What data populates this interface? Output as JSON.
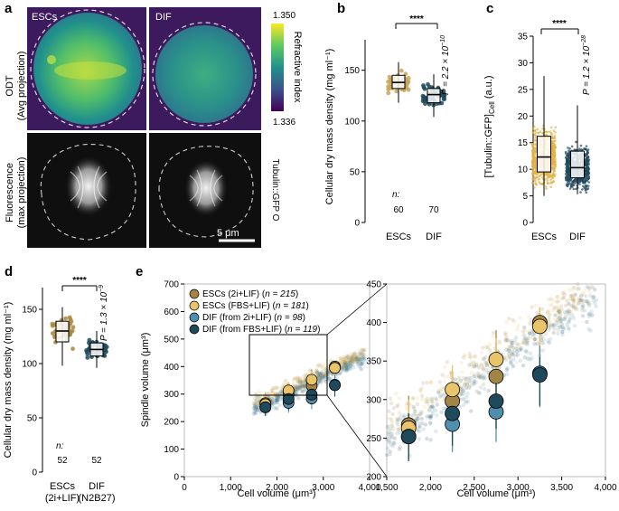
{
  "panel_labels": {
    "a": "a",
    "b": "b",
    "c": "c",
    "d": "d",
    "e": "e"
  },
  "panel_a": {
    "image_labels": [
      "ESCs",
      "DIF"
    ],
    "row_labels": [
      "ODT\n(Avg projection)",
      "Fluorescence\n(max projection)"
    ],
    "colorbar": {
      "max": "1.350",
      "min": "1.336",
      "label": "Refractive index",
      "colors": [
        "#440154",
        "#3b528b",
        "#21918c",
        "#5ec962",
        "#fde725"
      ]
    },
    "side_label": "Tubulin::GFP O",
    "scale_bar": "5 μm"
  },
  "chart_data": [
    {
      "panel": "b",
      "type": "box",
      "ylabel": "Cellular dry mass density (mg ml⁻¹)",
      "ylim": [
        0,
        180
      ],
      "yticks": [
        "0",
        "50",
        "100",
        "150"
      ],
      "categories": [
        "ESCs",
        "DIF"
      ],
      "n_label": "n:",
      "n": [
        "60",
        "70"
      ],
      "medians": [
        138,
        126
      ],
      "q1": [
        132,
        118
      ],
      "q3": [
        145,
        132
      ],
      "whiskers": [
        [
          118,
          158
        ],
        [
          104,
          146
        ]
      ],
      "colors": [
        "#c9a45a",
        "#1f4a5c"
      ],
      "significance": "****",
      "p_value": "P = 2.2 × 10",
      "p_exp": "−10"
    },
    {
      "panel": "c",
      "type": "box",
      "ylabel": "[Tubulin::GFP]",
      "ylabel_sub": "Cell",
      "ylabel_unit": " (a.u.)",
      "ylim": [
        0,
        35
      ],
      "yticks": [
        "0",
        "5",
        "10",
        "15",
        "20",
        "25",
        "30",
        "35"
      ],
      "categories": [
        "ESCs",
        "DIF"
      ],
      "medians": [
        12.3,
        10.3
      ],
      "q1": [
        9.5,
        8.4
      ],
      "q3": [
        16.2,
        13.4
      ],
      "whiskers": [
        [
          5.0,
          27.5
        ],
        [
          5.3,
          22.0
        ]
      ],
      "colors": [
        "#e0b24a",
        "#1f4a5c"
      ],
      "significance": "****",
      "p_value": "P = 1.2 × 10",
      "p_exp": "−28"
    },
    {
      "panel": "d",
      "type": "box",
      "ylabel": "Cellular dry mass density (mg ml⁻¹)",
      "ylim": [
        0,
        170
      ],
      "yticks": [
        "0",
        "50",
        "100",
        "150"
      ],
      "categories": [
        "ESCs\n(2i+LIF)",
        "DIF\n(N2B27)"
      ],
      "n_label": "n:",
      "n": [
        "52",
        "52"
      ],
      "medians": [
        130,
        113
      ],
      "q1": [
        120,
        107
      ],
      "q3": [
        139,
        119
      ],
      "whiskers": [
        [
          98,
          152
        ],
        [
          96,
          130
        ]
      ],
      "colors": [
        "#a8883f",
        "#1f4a5c"
      ],
      "significance": "****",
      "p_value": "P = 1.3 × 10",
      "p_exp": "−9"
    },
    {
      "panel": "e",
      "type": "scatter",
      "xlabel": "Cell volume (μm³)",
      "ylabel": "Spindle volume (μm³)",
      "xlim": [
        0,
        4000
      ],
      "ylim": [
        0,
        700
      ],
      "xticks": [
        "0",
        "1,000",
        "2,000",
        "3,000",
        "4,000"
      ],
      "yticks": [
        "0",
        "100",
        "200",
        "300",
        "400",
        "500",
        "600",
        "700"
      ],
      "legend": [
        {
          "name": "ESCs (2i+LIF) (",
          "n": "n = 215",
          "close": ")",
          "color": "#a38447"
        },
        {
          "name": "ESCs (FBS+LIF) (",
          "n": "n = 181",
          "close": ")",
          "color": "#e9c46a"
        },
        {
          "name": "DIF (from 2i+LIF) (",
          "n": "n = 98",
          "close": ")",
          "color": "#4f8fad"
        },
        {
          "name": "DIF (from FBS+LIF) (",
          "n": "n = 119",
          "close": ")",
          "color": "#1f4a5c"
        }
      ],
      "series": [
        {
          "name": "ESCs (2i+LIF)",
          "x": [
            1750,
            2250,
            2750,
            3250
          ],
          "y": [
            267,
            298,
            330,
            400
          ],
          "err": [
            [
              230,
              305
            ],
            [
              250,
              335
            ],
            [
              285,
              390
            ],
            [
              360,
              420
            ]
          ]
        },
        {
          "name": "ESCs (FBS+LIF)",
          "x": [
            1750,
            2250,
            2750,
            3250
          ],
          "y": [
            263,
            313,
            352,
            395
          ],
          "err": [
            [
              225,
              300
            ],
            [
              265,
              345
            ],
            [
              300,
              380
            ],
            [
              330,
              420
            ]
          ]
        },
        {
          "name": "DIF (from 2i+LIF)",
          "x": [
            1750,
            2250,
            2750,
            3250
          ],
          "y": [
            252,
            268,
            284,
            334
          ],
          "err": [
            [
              222,
              282
            ],
            [
              232,
              292
            ],
            [
              245,
              322
            ],
            [
              290,
              370
            ]
          ]
        },
        {
          "name": "DIF (from FBS+LIF)",
          "x": [
            1750,
            2250,
            2750,
            3250
          ],
          "y": [
            252,
            282,
            298,
            332
          ],
          "err": [
            [
              220,
              282
            ],
            [
              240,
              318
            ],
            [
              262,
              332
            ],
            [
              292,
              355
            ]
          ]
        }
      ]
    },
    {
      "panel": "e-zoom",
      "type": "scatter",
      "xlabel": "Cell volume (μm³)",
      "xlim": [
        1500,
        4000
      ],
      "ylim": [
        200,
        450
      ],
      "xticks": [
        "1,500",
        "2,000",
        "2,500",
        "3,000",
        "3,500",
        "4,000"
      ],
      "yticks": [
        "200",
        "250",
        "300",
        "350",
        "400",
        "450"
      ]
    }
  ]
}
